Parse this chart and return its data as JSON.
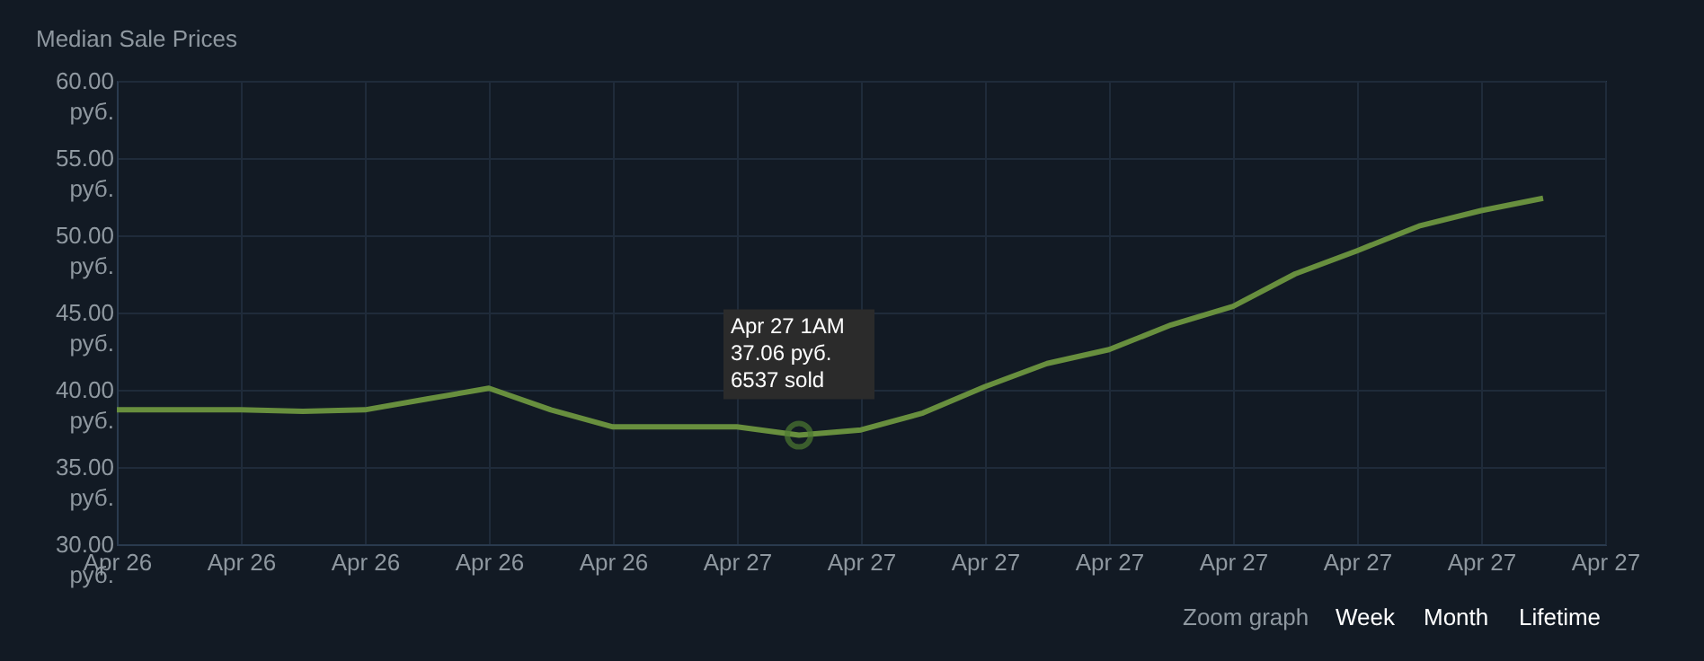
{
  "chart_data": {
    "type": "line",
    "title": "Median Sale Prices",
    "categories": [
      "Apr 26",
      null,
      "Apr 26",
      null,
      "Apr 26",
      null,
      "Apr 26",
      null,
      "Apr 26",
      null,
      "Apr 27",
      null,
      "Apr 27",
      null,
      "Apr 27",
      null,
      "Apr 27",
      null,
      "Apr 27",
      null,
      "Apr 27",
      null,
      "Apr 27",
      null,
      "Apr 27"
    ],
    "series": [
      {
        "color": "#688f3e",
        "values": [
          38.7,
          38.7,
          38.7,
          38.6,
          38.7,
          39.4,
          40.1,
          38.7,
          37.6,
          37.6,
          37.6,
          37.06,
          37.4,
          38.5,
          40.2,
          41.7,
          42.6,
          44.2,
          45.4,
          47.5,
          49.0,
          50.6,
          51.6,
          52.4,
          null
        ]
      }
    ],
    "ylim": [
      30,
      60
    ],
    "yticks": [
      {
        "value": 30,
        "label": "30.00 руб."
      },
      {
        "value": 35,
        "label": "35.00 руб."
      },
      {
        "value": 40,
        "label": "40.00 руб."
      },
      {
        "value": 45,
        "label": "45.00 руб."
      },
      {
        "value": 50,
        "label": "50.00 руб."
      },
      {
        "value": 55,
        "label": "55.00 руб."
      },
      {
        "value": 60,
        "label": "60.00 руб."
      }
    ],
    "grid": true,
    "line_style": "solid",
    "annotations": [
      {
        "text": "Apr 27 1AM\n37.06 руб.\n6537 sold",
        "y": 37.06
      },
      "Zoom graph",
      "Week",
      "Month",
      "Lifetime"
    ]
  }
}
